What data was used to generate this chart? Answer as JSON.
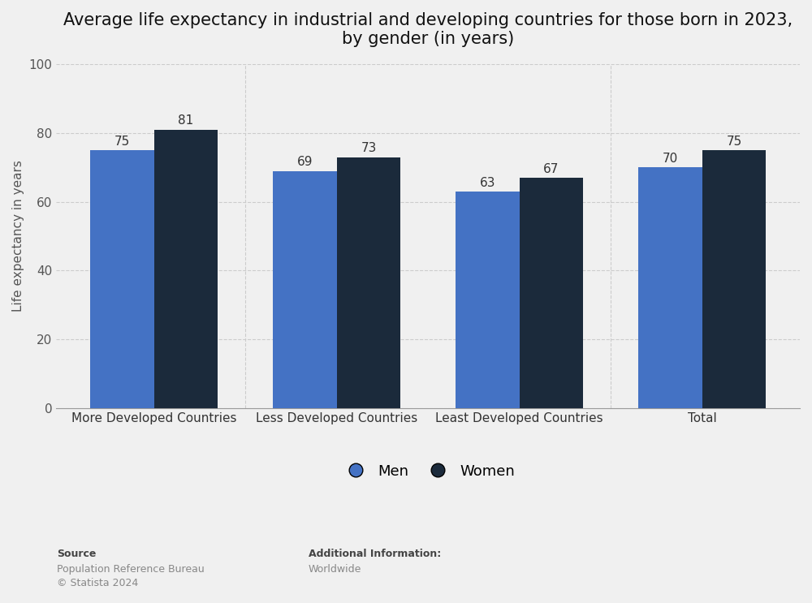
{
  "title": "Average life expectancy in industrial and developing countries for those born in 2023,\nby gender (in years)",
  "categories": [
    "More Developed Countries",
    "Less Developed Countries",
    "Least Developed Countries",
    "Total"
  ],
  "men_values": [
    75,
    69,
    63,
    70
  ],
  "women_values": [
    81,
    73,
    67,
    75
  ],
  "men_color": "#4472C4",
  "women_color": "#1B2A3B",
  "ylabel": "Life expectancy in years",
  "ylim": [
    0,
    100
  ],
  "yticks": [
    0,
    20,
    40,
    60,
    80,
    100
  ],
  "bar_width": 0.35,
  "background_color": "#f0f0f0",
  "plot_bg_color": "#f0f0f0",
  "title_fontsize": 15,
  "label_fontsize": 11,
  "tick_fontsize": 11,
  "legend_labels": [
    "Men",
    "Women"
  ],
  "source_line1": "Source",
  "source_line2": "Population Reference Bureau",
  "source_line3": "© Statista 2024",
  "addinfo_line1": "Additional Information:",
  "addinfo_line2": "Worldwide",
  "grid_color": "#cccccc",
  "annotation_fontsize": 11
}
